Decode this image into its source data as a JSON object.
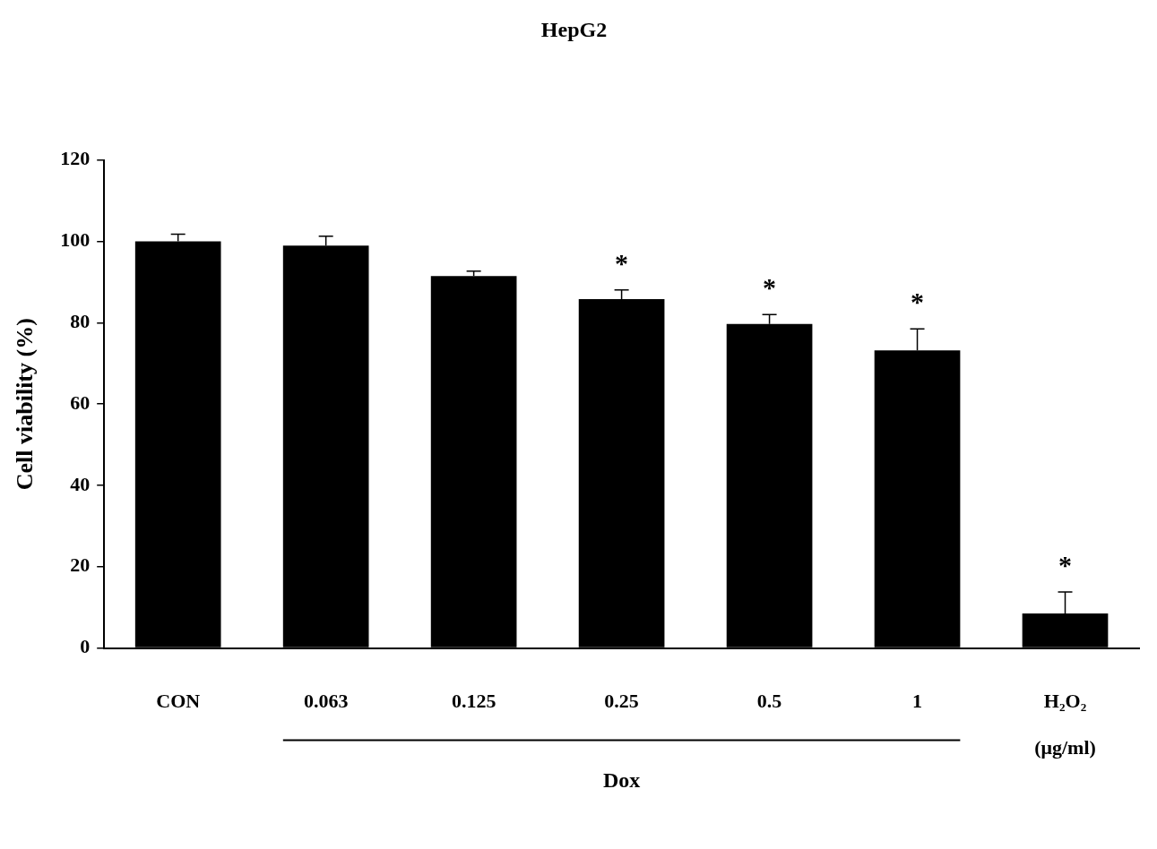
{
  "chart_data": {
    "type": "bar",
    "title": "HepG2",
    "y_label": "Cell viability (%)",
    "categories": [
      "CON",
      "0.063",
      "0.125",
      "0.25",
      "0.5",
      "1",
      "H₂O₂"
    ],
    "values": [
      100,
      99,
      91.5,
      85.8,
      79.7,
      73.2,
      8.5
    ],
    "errors": [
      1.8,
      2.3,
      1.2,
      2.3,
      2.3,
      5.3,
      5.3
    ],
    "significance": [
      null,
      null,
      null,
      "*",
      "*",
      "*",
      "*"
    ],
    "group": {
      "label": "Dox",
      "categories": [
        "0.063",
        "0.125",
        "0.25",
        "0.5",
        "1"
      ]
    },
    "x_unit_label": "(μg/ml)",
    "color": "#000000",
    "ylim": [
      0,
      120
    ],
    "yticks": [
      0,
      20,
      40,
      60,
      80,
      100,
      120
    ],
    "grid": false
  }
}
